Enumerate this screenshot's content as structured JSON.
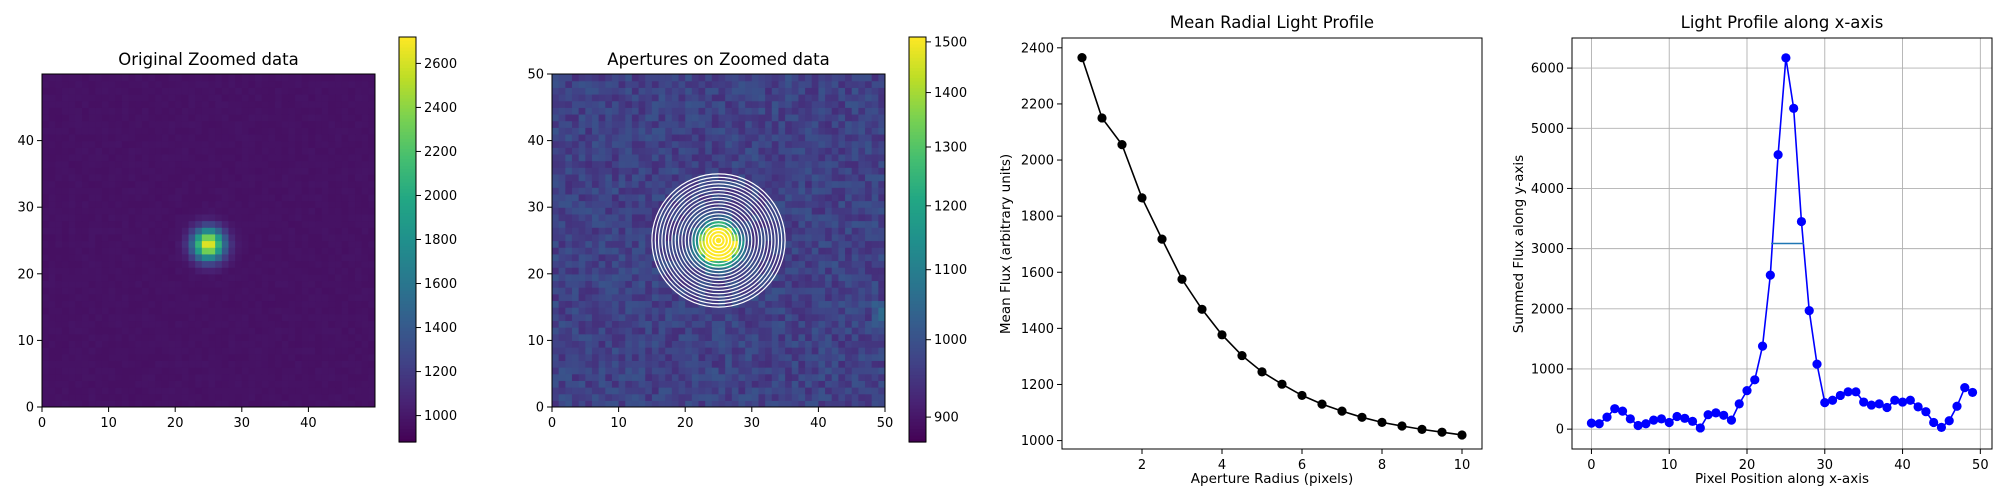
{
  "chart_data": [
    {
      "type": "heatmap",
      "title": "Original Zoomed data",
      "xlim": [
        0,
        50
      ],
      "ylim": [
        0,
        50
      ],
      "xticks": [
        0,
        10,
        20,
        30,
        40
      ],
      "yticks": [
        0,
        10,
        20,
        30,
        40
      ],
      "grid": [
        50,
        50
      ],
      "colormap": "viridis",
      "source": {
        "x": 25,
        "y": 24.5,
        "sigma": 1.6,
        "peak": 2700,
        "background": 970
      },
      "colorbar": {
        "min": 880,
        "max": 2720,
        "ticks": [
          1000,
          1200,
          1400,
          1600,
          1800,
          2000,
          2200,
          2400,
          2600
        ],
        "scale": "linear"
      }
    },
    {
      "type": "heatmap",
      "title": "Apertures on Zoomed data",
      "xlim": [
        0,
        50
      ],
      "ylim": [
        0,
        50
      ],
      "xticks": [
        0,
        10,
        20,
        30,
        40,
        50
      ],
      "yticks": [
        0,
        10,
        20,
        30,
        40,
        50
      ],
      "grid": [
        50,
        50
      ],
      "colormap": "viridis",
      "scale": "log",
      "apertures": {
        "center": [
          25,
          25
        ],
        "radius_min": 0.5,
        "radius_max": 10,
        "step": 0.5,
        "color": "#ffffff"
      },
      "colorbar": {
        "min": 870,
        "max": 1510,
        "ticks": [
          900,
          1000,
          1100,
          1200,
          1300,
          1400,
          1500
        ],
        "scale": "log"
      }
    },
    {
      "type": "line",
      "title": "Mean Radial Light Profile",
      "xlabel": "Aperture Radius (pixels)",
      "ylabel": "Mean Flux (arbitrary units)",
      "xlim": [
        0.0,
        10.5
      ],
      "ylim": [
        970,
        2435
      ],
      "xticks": [
        2,
        4,
        6,
        8,
        10
      ],
      "yticks": [
        1000,
        1200,
        1400,
        1600,
        1800,
        2000,
        2200,
        2400
      ],
      "grid": false,
      "color": "#000000",
      "x": [
        0.5,
        1.0,
        1.5,
        2.0,
        2.5,
        3.0,
        3.5,
        4.0,
        4.5,
        5.0,
        5.5,
        6.0,
        6.5,
        7.0,
        7.5,
        8.0,
        8.5,
        9.0,
        9.5,
        10.0
      ],
      "y": [
        2365,
        2150,
        2055,
        1865,
        1718,
        1575,
        1468,
        1377,
        1303,
        1245,
        1201,
        1161,
        1130,
        1105,
        1083,
        1065,
        1052,
        1040,
        1030,
        1020
      ]
    },
    {
      "type": "line",
      "title": "Light Profile along x-axis",
      "xlabel": "Pixel Position along x-axis",
      "ylabel": "Summed Flux along y-axis",
      "xlim": [
        -2.5,
        51.5
      ],
      "ylim": [
        -330,
        6500
      ],
      "xticks": [
        0,
        10,
        20,
        30,
        40,
        50
      ],
      "yticks": [
        0,
        1000,
        2000,
        3000,
        4000,
        5000,
        6000
      ],
      "grid": true,
      "color": "#0000ff",
      "x": [
        0,
        1,
        2,
        3,
        4,
        5,
        6,
        7,
        8,
        9,
        10,
        11,
        12,
        13,
        14,
        15,
        16,
        17,
        18,
        19,
        20,
        21,
        22,
        23,
        24,
        25,
        26,
        27,
        28,
        29,
        30,
        31,
        32,
        33,
        34,
        35,
        36,
        37,
        38,
        39,
        40,
        41,
        42,
        43,
        44,
        45,
        46,
        47,
        48,
        49
      ],
      "y": [
        100,
        90,
        200,
        340,
        300,
        170,
        60,
        90,
        150,
        170,
        110,
        210,
        180,
        130,
        20,
        240,
        270,
        230,
        150,
        420,
        640,
        820,
        1380,
        2560,
        4560,
        6170,
        5330,
        3450,
        1970,
        1080,
        440,
        480,
        560,
        620,
        620,
        450,
        400,
        420,
        360,
        480,
        450,
        480,
        370,
        290,
        110,
        30,
        140,
        380,
        690,
        610
      ],
      "fwhm_line": {
        "x": [
          23.1,
          27.3
        ],
        "y": 3085,
        "color": "#1f77b4"
      }
    }
  ]
}
